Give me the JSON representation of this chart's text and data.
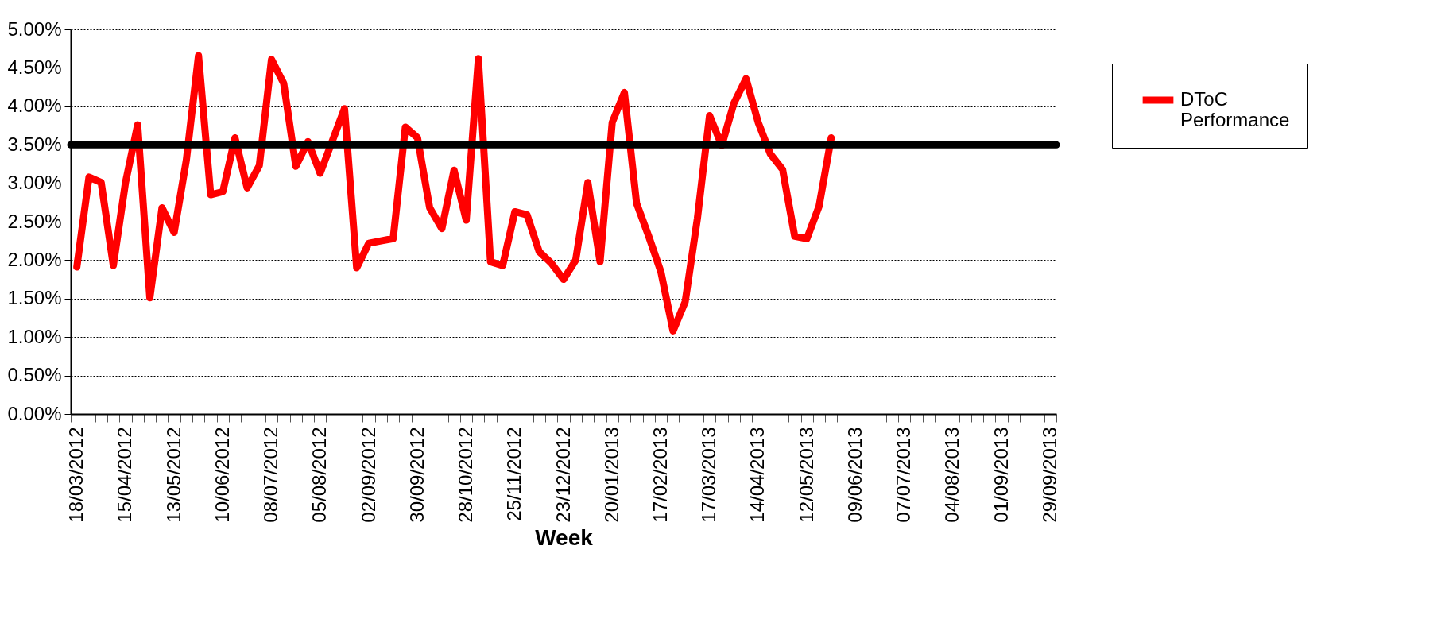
{
  "chart_data": {
    "type": "line",
    "xlabel": "Week",
    "categories": [
      "18/03/2012",
      null,
      null,
      null,
      "15/04/2012",
      null,
      null,
      null,
      "13/05/2012",
      null,
      null,
      null,
      "10/06/2012",
      null,
      null,
      null,
      "08/07/2012",
      null,
      null,
      null,
      "05/08/2012",
      null,
      null,
      null,
      "02/09/2012",
      null,
      null,
      null,
      "30/09/2012",
      null,
      null,
      null,
      "28/10/2012",
      null,
      null,
      null,
      "25/11/2012",
      null,
      null,
      null,
      "23/12/2012",
      null,
      null,
      null,
      "20/01/2013",
      null,
      null,
      null,
      "17/02/2013",
      null,
      null,
      null,
      "17/03/2013",
      null,
      null,
      null,
      "14/04/2013",
      null,
      null,
      null,
      "12/05/2013",
      null,
      null,
      null,
      "09/06/2013",
      null,
      null,
      null,
      "07/07/2013",
      null,
      null,
      null,
      "04/08/2013",
      null,
      null,
      null,
      "01/09/2013",
      null,
      null,
      null,
      "29/09/2013"
    ],
    "series": [
      {
        "name": "DToC Performance",
        "color": "#ff0000",
        "values": [
          1.91,
          3.08,
          3.01,
          1.93,
          3.01,
          3.76,
          1.51,
          2.68,
          2.36,
          3.3,
          4.66,
          2.85,
          2.89,
          3.59,
          2.94,
          3.23,
          4.61,
          4.3,
          3.22,
          3.54,
          3.13,
          3.55,
          3.97,
          1.9,
          2.22,
          2.25,
          2.28,
          3.73,
          3.59,
          2.68,
          2.41,
          3.17,
          2.52,
          4.62,
          1.98,
          1.93,
          2.63,
          2.59,
          2.11,
          1.96,
          1.75,
          2.0,
          3.01,
          1.98,
          3.79,
          4.18,
          2.74,
          2.31,
          1.85,
          1.08,
          1.46,
          2.54,
          3.88,
          3.49,
          4.04,
          4.36,
          3.79,
          3.38,
          3.18,
          2.31,
          2.28,
          2.7,
          3.59,
          null,
          null,
          null,
          null,
          null,
          null,
          null,
          null,
          null,
          null,
          null,
          null,
          null,
          null,
          null,
          null,
          null,
          null
        ]
      }
    ],
    "ylim": [
      0,
      5
    ],
    "yticks": [
      {
        "value": 0,
        "label": "0.00%"
      },
      {
        "value": 0.5,
        "label": "0.50%"
      },
      {
        "value": 1,
        "label": "1.00%"
      },
      {
        "value": 1.5,
        "label": "1.50%"
      },
      {
        "value": 2,
        "label": "2.00%"
      },
      {
        "value": 2.5,
        "label": "2.50%"
      },
      {
        "value": 3,
        "label": "3.00%"
      },
      {
        "value": 3.5,
        "label": "3.50%"
      },
      {
        "value": 4,
        "label": "4.00%"
      },
      {
        "value": 4.5,
        "label": "4.50%"
      },
      {
        "value": 5,
        "label": "5.00%"
      }
    ],
    "ref_lines": [
      {
        "axis": "y",
        "value": 3.5,
        "color": "#000000"
      }
    ],
    "grid": "y",
    "legend": "right",
    "marker": "none",
    "line_style": "solid"
  }
}
